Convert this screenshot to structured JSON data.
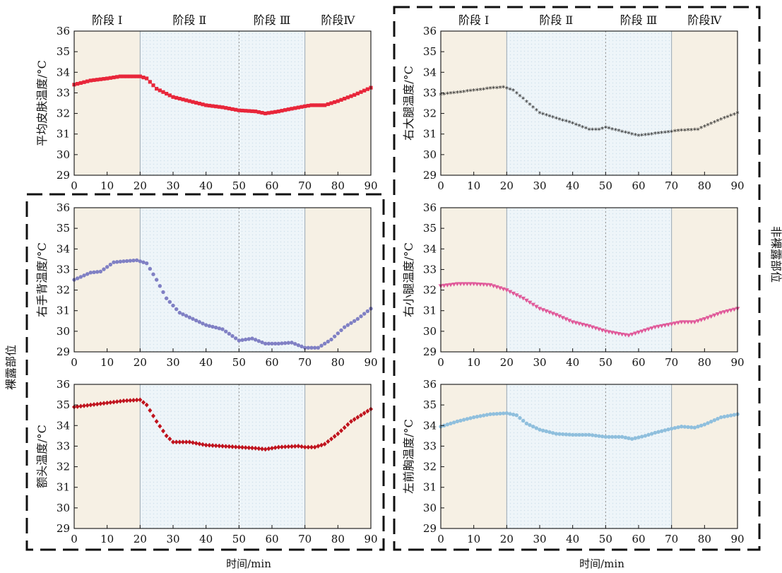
{
  "figure": {
    "x_axis_title": "时间/min",
    "group_labels": {
      "exposed": "裸露部位",
      "non_exposed": "非裸露部位"
    },
    "phase_labels": [
      "阶段 Ⅰ",
      "阶段 Ⅱ",
      "阶段 Ⅲ",
      "阶段Ⅳ"
    ]
  },
  "chart_data": [
    {
      "id": "mean-skin",
      "type": "scatter",
      "ylabel": "平均皮肤温度/°C",
      "xlim": [
        0,
        90
      ],
      "ylim": [
        29,
        36
      ],
      "xticks": [
        0,
        10,
        20,
        30,
        40,
        50,
        60,
        70,
        80,
        90
      ],
      "yticks": [
        29,
        30,
        31,
        32,
        33,
        34,
        35,
        36
      ],
      "marker": "square",
      "color": "#e8263a",
      "show_phase_labels": true,
      "keypoints": [
        [
          0,
          33.4
        ],
        [
          5,
          33.6
        ],
        [
          10,
          33.7
        ],
        [
          14,
          33.8
        ],
        [
          20,
          33.8
        ],
        [
          22,
          33.7
        ],
        [
          25,
          33.2
        ],
        [
          30,
          32.8
        ],
        [
          35,
          32.6
        ],
        [
          40,
          32.4
        ],
        [
          45,
          32.3
        ],
        [
          50,
          32.15
        ],
        [
          55,
          32.1
        ],
        [
          58,
          32.0
        ],
        [
          62,
          32.1
        ],
        [
          65,
          32.2
        ],
        [
          70,
          32.35
        ],
        [
          72,
          32.4
        ],
        [
          76,
          32.4
        ],
        [
          80,
          32.6
        ],
        [
          85,
          32.9
        ],
        [
          90,
          33.25
        ]
      ]
    },
    {
      "id": "right-thigh",
      "type": "scatter",
      "ylabel": "右大腿温度/°C",
      "xlim": [
        0,
        90
      ],
      "ylim": [
        29,
        36
      ],
      "xticks": [
        0,
        10,
        20,
        30,
        40,
        50,
        60,
        70,
        80,
        90
      ],
      "yticks": [
        29,
        30,
        31,
        32,
        33,
        34,
        35,
        36
      ],
      "marker": "star",
      "color": "#2a2a2a",
      "show_phase_labels": true,
      "keypoints": [
        [
          0,
          32.9
        ],
        [
          5,
          33.0
        ],
        [
          10,
          33.1
        ],
        [
          15,
          33.2
        ],
        [
          19,
          33.25
        ],
        [
          22,
          33.1
        ],
        [
          25,
          32.7
        ],
        [
          30,
          32.0
        ],
        [
          35,
          31.75
        ],
        [
          40,
          31.5
        ],
        [
          45,
          31.2
        ],
        [
          48,
          31.2
        ],
        [
          50,
          31.3
        ],
        [
          55,
          31.1
        ],
        [
          60,
          30.9
        ],
        [
          65,
          31.0
        ],
        [
          70,
          31.1
        ],
        [
          72,
          31.15
        ],
        [
          78,
          31.2
        ],
        [
          80,
          31.35
        ],
        [
          85,
          31.7
        ],
        [
          90,
          32.0
        ]
      ]
    },
    {
      "id": "right-hand",
      "type": "scatter",
      "ylabel": "右手背温度/°C",
      "xlim": [
        0,
        90
      ],
      "ylim": [
        29,
        36
      ],
      "xticks": [
        0,
        10,
        20,
        30,
        40,
        50,
        60,
        70,
        80,
        90
      ],
      "yticks": [
        29,
        30,
        31,
        32,
        33,
        34,
        35,
        36
      ],
      "marker": "circle",
      "color": "#8080c4",
      "show_phase_labels": false,
      "keypoints": [
        [
          0,
          32.5
        ],
        [
          5,
          32.85
        ],
        [
          8,
          32.9
        ],
        [
          12,
          33.35
        ],
        [
          15,
          33.4
        ],
        [
          19,
          33.45
        ],
        [
          22,
          33.3
        ],
        [
          25,
          32.5
        ],
        [
          28,
          31.6
        ],
        [
          32,
          30.9
        ],
        [
          36,
          30.6
        ],
        [
          40,
          30.3
        ],
        [
          45,
          30.1
        ],
        [
          50,
          29.55
        ],
        [
          54,
          29.65
        ],
        [
          58,
          29.4
        ],
        [
          62,
          29.4
        ],
        [
          66,
          29.45
        ],
        [
          70,
          29.2
        ],
        [
          74,
          29.2
        ],
        [
          78,
          29.6
        ],
        [
          82,
          30.2
        ],
        [
          86,
          30.6
        ],
        [
          90,
          31.1
        ]
      ]
    },
    {
      "id": "right-calf",
      "type": "scatter",
      "ylabel": "右小腿温度/°C",
      "xlim": [
        0,
        90
      ],
      "ylim": [
        29,
        36
      ],
      "xticks": [
        0,
        10,
        20,
        30,
        40,
        50,
        60,
        70,
        80,
        90
      ],
      "yticks": [
        29,
        30,
        31,
        32,
        33,
        34,
        35,
        36
      ],
      "marker": "triangle-down",
      "color": "#e05a9a",
      "show_phase_labels": false,
      "keypoints": [
        [
          0,
          32.2
        ],
        [
          5,
          32.3
        ],
        [
          10,
          32.3
        ],
        [
          15,
          32.25
        ],
        [
          20,
          32.0
        ],
        [
          25,
          31.6
        ],
        [
          30,
          31.1
        ],
        [
          35,
          30.8
        ],
        [
          40,
          30.45
        ],
        [
          45,
          30.25
        ],
        [
          50,
          30.0
        ],
        [
          55,
          29.85
        ],
        [
          57,
          29.8
        ],
        [
          60,
          29.95
        ],
        [
          65,
          30.2
        ],
        [
          70,
          30.35
        ],
        [
          73,
          30.45
        ],
        [
          77,
          30.45
        ],
        [
          80,
          30.6
        ],
        [
          85,
          30.9
        ],
        [
          90,
          31.1
        ]
      ]
    },
    {
      "id": "forehead",
      "type": "scatter",
      "ylabel": "额头温度/°C",
      "xlim": [
        0,
        90
      ],
      "ylim": [
        29,
        36
      ],
      "xticks": [
        0,
        10,
        20,
        30,
        40,
        50,
        60,
        70,
        80,
        90
      ],
      "yticks": [
        29,
        30,
        31,
        32,
        33,
        34,
        35,
        36
      ],
      "marker": "diamond",
      "color": "#c0141e",
      "show_phase_labels": false,
      "keypoints": [
        [
          0,
          34.9
        ],
        [
          5,
          35.0
        ],
        [
          10,
          35.1
        ],
        [
          15,
          35.2
        ],
        [
          20,
          35.25
        ],
        [
          22,
          35.0
        ],
        [
          25,
          34.2
        ],
        [
          28,
          33.5
        ],
        [
          30,
          33.2
        ],
        [
          35,
          33.2
        ],
        [
          40,
          33.05
        ],
        [
          45,
          33.0
        ],
        [
          50,
          32.95
        ],
        [
          55,
          32.9
        ],
        [
          58,
          32.85
        ],
        [
          62,
          32.95
        ],
        [
          68,
          33.0
        ],
        [
          70,
          32.95
        ],
        [
          73,
          32.95
        ],
        [
          76,
          33.1
        ],
        [
          80,
          33.6
        ],
        [
          84,
          34.2
        ],
        [
          88,
          34.6
        ],
        [
          90,
          34.8
        ]
      ]
    },
    {
      "id": "left-chest",
      "type": "scatter",
      "ylabel": "左前胸温度/°C",
      "xlim": [
        0,
        90
      ],
      "ylim": [
        29,
        36
      ],
      "xticks": [
        0,
        10,
        20,
        30,
        40,
        50,
        60,
        70,
        80,
        90
      ],
      "yticks": [
        29,
        30,
        31,
        32,
        33,
        34,
        35,
        36
      ],
      "marker": "circle",
      "color": "#8fbfdd",
      "show_phase_labels": false,
      "keypoints": [
        [
          0,
          33.95
        ],
        [
          5,
          34.2
        ],
        [
          10,
          34.4
        ],
        [
          15,
          34.55
        ],
        [
          20,
          34.6
        ],
        [
          23,
          34.5
        ],
        [
          26,
          34.1
        ],
        [
          30,
          33.8
        ],
        [
          35,
          33.6
        ],
        [
          40,
          33.55
        ],
        [
          45,
          33.55
        ],
        [
          50,
          33.45
        ],
        [
          55,
          33.45
        ],
        [
          58,
          33.35
        ],
        [
          62,
          33.5
        ],
        [
          65,
          33.65
        ],
        [
          70,
          33.85
        ],
        [
          73,
          33.95
        ],
        [
          77,
          33.9
        ],
        [
          80,
          34.05
        ],
        [
          85,
          34.4
        ],
        [
          90,
          34.55
        ]
      ]
    }
  ]
}
